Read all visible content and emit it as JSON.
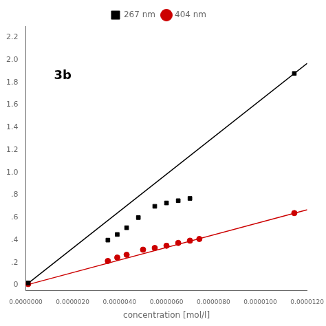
{
  "chart_data": {
    "type": "scatter",
    "annotations": [
      "3b"
    ],
    "xlabel": "concentration [mol/l]",
    "xlim": [
      0.0,
      1.2e-05
    ],
    "ylim": [
      -0.05,
      2.3
    ],
    "xticks": [
      {
        "value": 0.0,
        "label": "0.0000000"
      },
      {
        "value": 2e-06,
        "label": "0.0000020"
      },
      {
        "value": 4e-06,
        "label": "0.0000040"
      },
      {
        "value": 6e-06,
        "label": "0.0000060"
      },
      {
        "value": 8e-06,
        "label": "0.0000080"
      },
      {
        "value": 1e-05,
        "label": "0.0000100"
      },
      {
        "value": 1.2e-05,
        "label": "0.0000120"
      }
    ],
    "yticks": [
      0,
      {
        "value": 0.2,
        "label": ".2"
      },
      {
        "value": 0.4,
        "label": ".4"
      },
      {
        "value": 0.6,
        "label": ".6"
      },
      {
        "value": 0.8,
        "label": ".8"
      },
      {
        "value": 1.0,
        "label": "1.0"
      },
      1.2,
      1.4,
      1.6,
      1.8,
      {
        "value": 2.0,
        "label": "2.0"
      },
      2.2
    ],
    "grid": false,
    "legend": "top",
    "series": [
      {
        "type": "line",
        "color": "#000000",
        "x": [
          0.0,
          1.2e-05
        ],
        "values": [
          0.0,
          1.97
        ]
      },
      {
        "type": "line",
        "color": "#cc0000",
        "x": [
          0.0,
          1.2e-05
        ],
        "values": [
          0.0,
          0.67
        ]
      },
      {
        "type": "scatter",
        "name": "267 nm",
        "color": "#000000",
        "marker": "square",
        "x": [
          1e-07,
          3.5e-06,
          3.9e-06,
          4.3e-06,
          4.8e-06,
          5.5e-06,
          6e-06,
          6.5e-06,
          7e-06,
          1.145e-05
        ],
        "values": [
          0.02,
          0.4,
          0.45,
          0.51,
          0.6,
          0.7,
          0.73,
          0.75,
          0.77,
          1.88
        ]
      },
      {
        "type": "scatter",
        "name": "404 nm",
        "color": "#cc0000",
        "marker": "circle",
        "x": [
          1e-07,
          3.5e-06,
          3.9e-06,
          4.3e-06,
          5e-06,
          5.5e-06,
          6e-06,
          6.5e-06,
          7e-06,
          7.4e-06,
          1.145e-05
        ],
        "values": [
          0.01,
          0.215,
          0.245,
          0.27,
          0.315,
          0.33,
          0.35,
          0.375,
          0.395,
          0.41,
          0.64
        ]
      }
    ]
  }
}
